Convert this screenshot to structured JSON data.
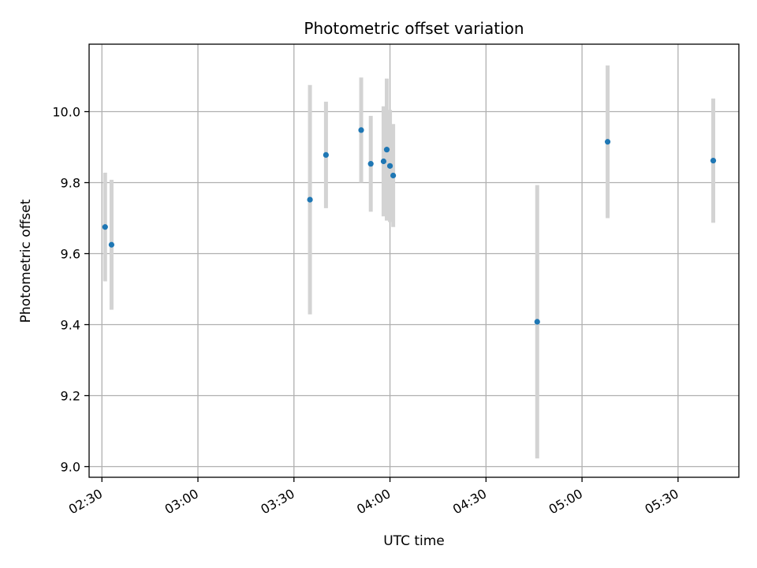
{
  "chart_data": {
    "type": "scatter",
    "title": "Photometric offset variation",
    "xlabel": "UTC time",
    "ylabel": "Photometric offset",
    "x_axis_type": "time",
    "xlim": [
      "02:26",
      "05:49"
    ],
    "ylim": [
      8.97,
      10.19
    ],
    "grid": true,
    "x_ticks": [
      "02:30",
      "03:00",
      "03:30",
      "04:00",
      "04:30",
      "05:00",
      "05:30"
    ],
    "y_ticks": [
      9.0,
      9.2,
      9.4,
      9.6,
      9.8,
      10.0
    ],
    "y_tick_labels": [
      "9.0",
      "9.2",
      "9.4",
      "9.6",
      "9.8",
      "10.0"
    ],
    "colors": {
      "point": "#1f77b4",
      "errorbar": "#d3d3d3",
      "grid": "#b0b0b0"
    },
    "points": [
      {
        "time": "02:31",
        "y": 9.675,
        "err": 0.153
      },
      {
        "time": "02:33",
        "y": 9.625,
        "err": 0.183
      },
      {
        "time": "03:35",
        "y": 9.752,
        "err": 0.323
      },
      {
        "time": "03:40",
        "y": 9.878,
        "err": 0.15
      },
      {
        "time": "03:51",
        "y": 9.948,
        "err": 0.148
      },
      {
        "time": "03:54",
        "y": 9.853,
        "err": 0.135
      },
      {
        "time": "03:58",
        "y": 9.86,
        "err": 0.155
      },
      {
        "time": "03:59",
        "y": 9.893,
        "err": 0.2
      },
      {
        "time": "04:00",
        "y": 9.847,
        "err": 0.158
      },
      {
        "time": "04:01",
        "y": 9.82,
        "err": 0.145
      },
      {
        "time": "04:46",
        "y": 9.408,
        "err": 0.385
      },
      {
        "time": "05:08",
        "y": 9.915,
        "err": 0.215
      },
      {
        "time": "05:41",
        "y": 9.862,
        "err": 0.175
      }
    ]
  }
}
